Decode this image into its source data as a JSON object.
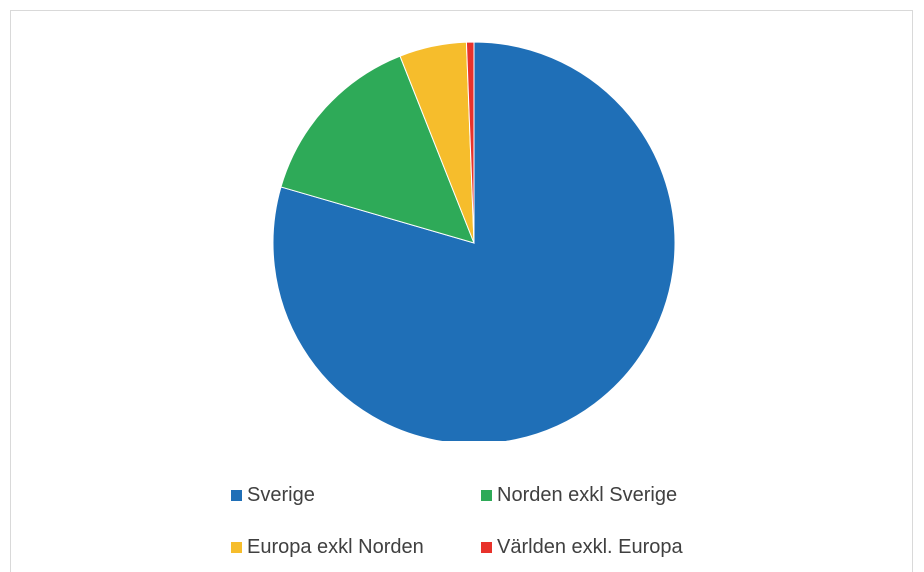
{
  "chart_data": {
    "type": "pie",
    "title": "",
    "categories": [
      "Sverige",
      "Norden exkl Sverige",
      "Europa exkl Norden",
      "Världen exkl. Europa"
    ],
    "values": [
      79.5,
      14.5,
      5.4,
      0.6
    ],
    "unit": "%",
    "colors": [
      "#1F6FB7",
      "#2EAA58",
      "#F6BD2C",
      "#E8322B"
    ],
    "legend": "bottom",
    "start_angle_deg": 0,
    "direction": "clockwise"
  },
  "legend": {
    "items": [
      {
        "label": "Sverige",
        "color": "#1F6FB7"
      },
      {
        "label": "Norden exkl Sverige",
        "color": "#2EAA58"
      },
      {
        "label": "Europa exkl Norden",
        "color": "#F6BD2C"
      },
      {
        "label": "Världen exkl. Europa",
        "color": "#E8322B"
      }
    ]
  }
}
